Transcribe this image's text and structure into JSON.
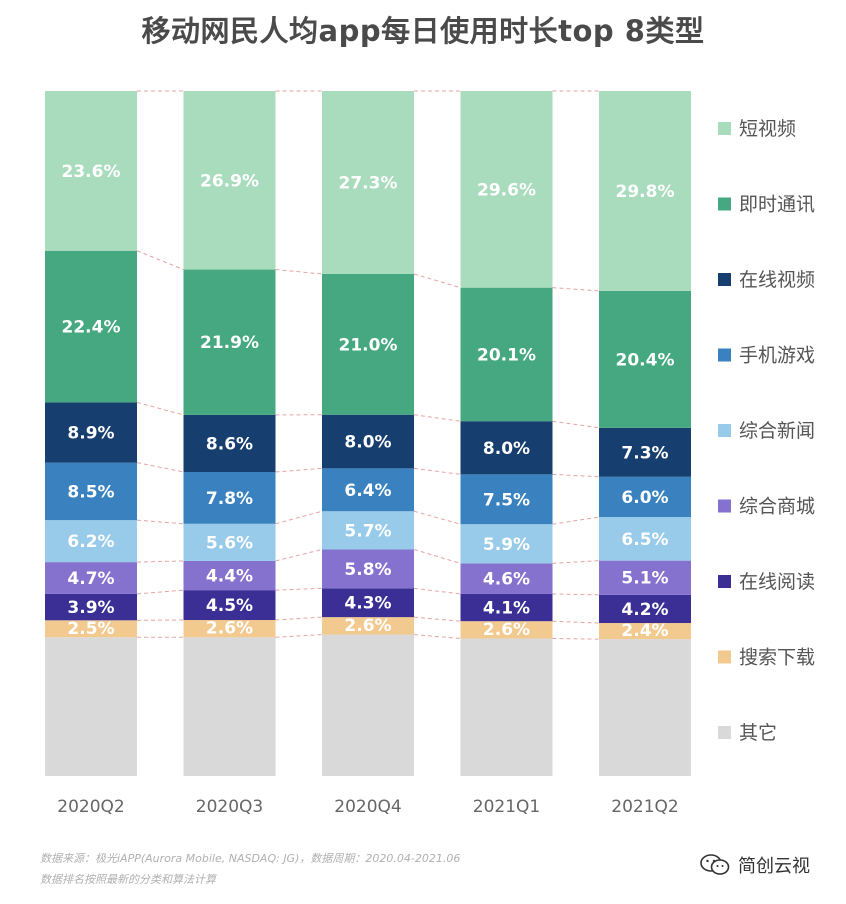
{
  "chart_data": {
    "type": "bar",
    "stacked": true,
    "percent_stacked": true,
    "title": "移动网民人均app每日使用时长top 8类型",
    "categories": [
      "2020Q2",
      "2020Q3",
      "2020Q4",
      "2021Q1",
      "2021Q2"
    ],
    "series": [
      {
        "name": "其它",
        "color": "#d9d9d9",
        "values": [
          20.5,
          20.9,
          21.1,
          20.7,
          20.4
        ],
        "labels": [
          "",
          "",
          "",
          "",
          ""
        ]
      },
      {
        "name": "搜索下载",
        "color": "#f2c98f",
        "values": [
          2.5,
          2.6,
          2.6,
          2.6,
          2.4
        ],
        "labels": [
          "2.5%",
          "2.6%",
          "2.6%",
          "2.6%",
          "2.4%"
        ]
      },
      {
        "name": "在线阅读",
        "color": "#3b2f95",
        "values": [
          3.9,
          4.5,
          4.3,
          4.1,
          4.2
        ],
        "labels": [
          "3.9%",
          "4.5%",
          "4.3%",
          "4.1%",
          "4.2%"
        ]
      },
      {
        "name": "综合商城",
        "color": "#8572cf",
        "values": [
          4.7,
          4.4,
          5.8,
          4.6,
          5.1
        ],
        "labels": [
          "4.7%",
          "4.4%",
          "5.8%",
          "4.6%",
          "5.1%"
        ]
      },
      {
        "name": "综合新闻",
        "color": "#97cbe9",
        "values": [
          6.2,
          5.6,
          5.7,
          5.9,
          6.5
        ],
        "labels": [
          "6.2%",
          "5.6%",
          "5.7%",
          "5.9%",
          "6.5%"
        ]
      },
      {
        "name": "手机游戏",
        "color": "#3a82bf",
        "values": [
          8.5,
          7.8,
          6.4,
          7.5,
          6.0
        ],
        "labels": [
          "8.5%",
          "7.8%",
          "6.4%",
          "7.5%",
          "6.0%"
        ]
      },
      {
        "name": "在线视频",
        "color": "#163e6e",
        "values": [
          8.9,
          8.6,
          8.0,
          8.0,
          7.3
        ],
        "labels": [
          "8.9%",
          "8.6%",
          "8.0%",
          "8.0%",
          "7.3%"
        ]
      },
      {
        "name": "即时通讯",
        "color": "#45a880",
        "values": [
          22.4,
          21.9,
          21.0,
          20.1,
          20.4
        ],
        "labels": [
          "22.4%",
          "21.9%",
          "21.0%",
          "20.1%",
          "20.4%"
        ]
      },
      {
        "name": "短视频",
        "color": "#a9dbbd",
        "values": [
          23.6,
          26.9,
          27.3,
          29.6,
          29.8
        ],
        "labels": [
          "23.6%",
          "26.9%",
          "27.3%",
          "29.6%",
          "29.8%"
        ]
      }
    ],
    "legend_order": [
      "短视频",
      "即时通讯",
      "在线视频",
      "手机游戏",
      "综合新闻",
      "综合商城",
      "在线阅读",
      "搜索下载",
      "其它"
    ],
    "legend_position": "right",
    "ylim": [
      0,
      100
    ],
    "connector_lines": true
  },
  "footer": {
    "source_line1": "数据来源：极光iAPP(Aurora Mobile, NASDAQ: JG)，数据周期：2020.04-2021.06",
    "source_line2": "数据排名按照最新的分类和算法计算",
    "wechat_account": "简创云视"
  }
}
